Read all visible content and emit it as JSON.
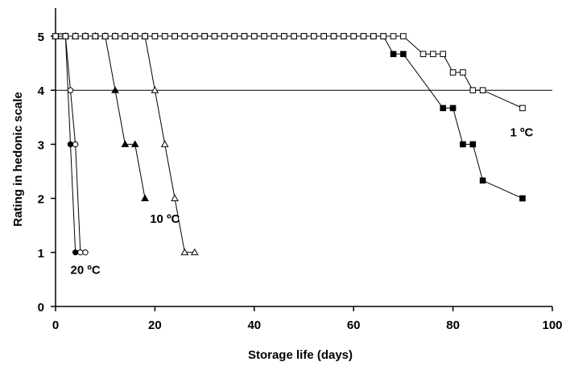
{
  "chart_data": {
    "type": "line",
    "xlabel": "Storage life (days)",
    "ylabel": "Rating in hedonic scale",
    "xlim": [
      0,
      100
    ],
    "ylim": [
      0,
      5
    ],
    "x_ticks": [
      "0",
      "20",
      "40",
      "60",
      "80",
      "100"
    ],
    "y_ticks": [
      "0",
      "1",
      "2",
      "3",
      "4",
      "5"
    ],
    "reference_line_y": 4,
    "grid": false,
    "legend": "none",
    "series": [
      {
        "marker": "filled-circle",
        "x": [
          0,
          1,
          2,
          3,
          4
        ],
        "y": [
          5,
          5,
          5,
          3,
          1
        ]
      },
      {
        "marker": "open-circle",
        "x": [
          0,
          1,
          2,
          3,
          4,
          5,
          6
        ],
        "y": [
          5,
          5,
          5,
          4,
          3,
          1,
          1
        ]
      },
      {
        "marker": "filled-triangle",
        "x": [
          0,
          2,
          4,
          6,
          8,
          10,
          12,
          14,
          16,
          18
        ],
        "y": [
          5,
          5,
          5,
          5,
          5,
          5,
          4,
          3,
          3,
          2
        ]
      },
      {
        "marker": "open-triangle",
        "x": [
          0,
          2,
          4,
          6,
          8,
          10,
          12,
          14,
          16,
          18,
          20,
          22,
          24,
          26,
          28
        ],
        "y": [
          5,
          5,
          5,
          5,
          5,
          5,
          5,
          5,
          5,
          5,
          4,
          3,
          2,
          1,
          1
        ]
      },
      {
        "marker": "filled-square",
        "x": [
          0,
          2,
          4,
          6,
          8,
          10,
          12,
          14,
          16,
          18,
          20,
          22,
          24,
          26,
          28,
          30,
          32,
          34,
          36,
          38,
          40,
          42,
          44,
          46,
          48,
          50,
          52,
          54,
          56,
          58,
          60,
          62,
          64,
          66,
          68,
          70,
          78,
          80,
          82,
          84,
          86,
          94
        ],
        "y": [
          5,
          5,
          5,
          5,
          5,
          5,
          5,
          5,
          5,
          5,
          5,
          5,
          5,
          5,
          5,
          5,
          5,
          5,
          5,
          5,
          5,
          5,
          5,
          5,
          5,
          5,
          5,
          5,
          5,
          5,
          5,
          5,
          5,
          5,
          4.67,
          4.67,
          3.67,
          3.67,
          3,
          3,
          2.33,
          2
        ]
      },
      {
        "marker": "open-square",
        "x": [
          0,
          2,
          4,
          6,
          8,
          10,
          12,
          14,
          16,
          18,
          20,
          22,
          24,
          26,
          28,
          30,
          32,
          34,
          36,
          38,
          40,
          42,
          44,
          46,
          48,
          50,
          52,
          54,
          56,
          58,
          60,
          62,
          64,
          66,
          68,
          70,
          74,
          76,
          78,
          80,
          82,
          84,
          86,
          94
        ],
        "y": [
          5,
          5,
          5,
          5,
          5,
          5,
          5,
          5,
          5,
          5,
          5,
          5,
          5,
          5,
          5,
          5,
          5,
          5,
          5,
          5,
          5,
          5,
          5,
          5,
          5,
          5,
          5,
          5,
          5,
          5,
          5,
          5,
          5,
          5,
          5,
          5,
          4.67,
          4.67,
          4.67,
          4.33,
          4.33,
          4,
          4,
          3.67
        ]
      }
    ],
    "annotations": [
      {
        "text": "20 ºC",
        "x": 3,
        "y": 0.6
      },
      {
        "text": "10 ºC",
        "x": 19,
        "y": 1.55
      },
      {
        "text": "1 ºC",
        "x": 91.5,
        "y": 3.15
      }
    ]
  }
}
